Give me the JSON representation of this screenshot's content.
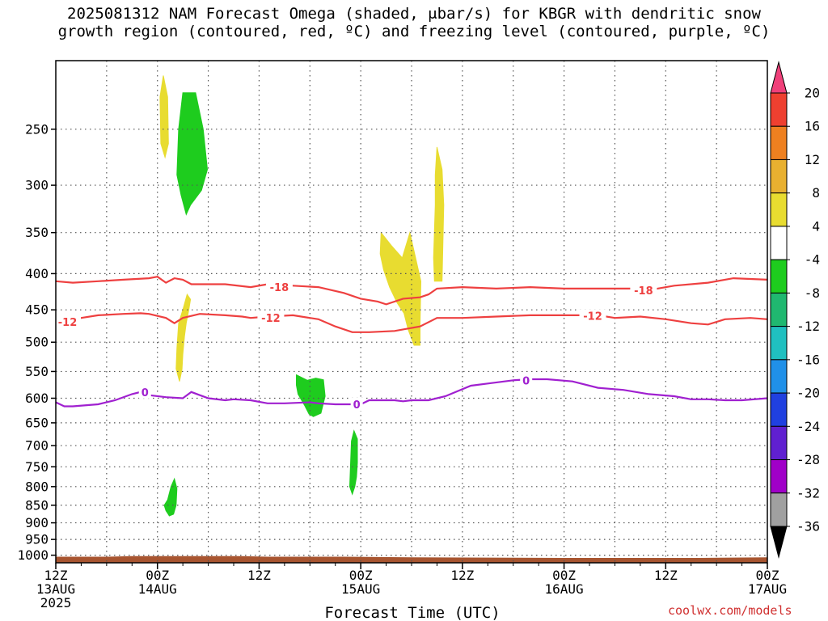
{
  "chart_data": {
    "type": "heatmap",
    "title_line1": "2025081312 NAM Forecast Omega (shaded, μbar/s) for KBGR with dendritic snow",
    "title_line2": "growth region (contoured, red, ºC) and freezing level (contoured, purple, ºC)",
    "xlabel": "Forecast Time (UTC)",
    "credit": "coolwx.com/models",
    "xlim": [
      0,
      84
    ],
    "ylim": [
      1025,
      200
    ],
    "y_scale": "log-pressure",
    "grid": true,
    "x_ticks": [
      {
        "x": 0,
        "l1": "12Z",
        "l2": "13AUG",
        "l3": "2025"
      },
      {
        "x": 12,
        "l1": "00Z",
        "l2": "14AUG",
        "l3": ""
      },
      {
        "x": 24,
        "l1": "12Z",
        "l2": "",
        "l3": ""
      },
      {
        "x": 36,
        "l1": "00Z",
        "l2": "15AUG",
        "l3": ""
      },
      {
        "x": 48,
        "l1": "12Z",
        "l2": "",
        "l3": ""
      },
      {
        "x": 60,
        "l1": "00Z",
        "l2": "16AUG",
        "l3": ""
      },
      {
        "x": 72,
        "l1": "12Z",
        "l2": "",
        "l3": ""
      },
      {
        "x": 84,
        "l1": "00Z",
        "l2": "17AUG",
        "l3": ""
      }
    ],
    "y_ticks": [
      250,
      300,
      350,
      400,
      450,
      500,
      550,
      600,
      650,
      700,
      750,
      800,
      850,
      900,
      950,
      1000
    ],
    "colorbar": {
      "labels": [
        "20",
        "16",
        "12",
        "8",
        "4",
        "-4",
        "-8",
        "-12",
        "-16",
        "-20",
        "-24",
        "-28",
        "-32",
        "-36"
      ],
      "colors": [
        "#f0407a",
        "#ee4030",
        "#ee8020",
        "#e8b030",
        "#e8dc30",
        "#ffffff",
        "#1ecc1e",
        "#20b870",
        "#20c0c0",
        "#2090e8",
        "#2040e0",
        "#6020d0",
        "#a000c8",
        "#a0a0a0",
        "#000000"
      ]
    },
    "contours": [
      {
        "level": "-18",
        "color": "#ee4040",
        "points": [
          [
            0,
            410
          ],
          [
            2,
            412
          ],
          [
            5,
            410
          ],
          [
            8,
            408
          ],
          [
            11,
            406
          ],
          [
            12,
            404
          ],
          [
            13,
            412
          ],
          [
            14,
            406
          ],
          [
            15,
            408
          ],
          [
            16,
            414
          ],
          [
            20,
            414
          ],
          [
            23,
            418
          ],
          [
            25,
            414
          ],
          [
            28,
            416
          ],
          [
            31,
            418
          ],
          [
            34,
            426
          ],
          [
            36,
            434
          ],
          [
            38,
            438
          ],
          [
            39,
            442
          ],
          [
            41,
            434
          ],
          [
            43,
            432
          ],
          [
            44,
            428
          ],
          [
            45,
            420
          ],
          [
            48,
            418
          ],
          [
            52,
            420
          ],
          [
            56,
            418
          ],
          [
            60,
            420
          ],
          [
            64,
            420
          ],
          [
            68,
            420
          ],
          [
            70,
            422
          ],
          [
            73,
            416
          ],
          [
            77,
            412
          ],
          [
            80,
            406
          ],
          [
            84,
            408
          ]
        ],
        "labels": [
          [
            25,
            418
          ],
          [
            68,
            422
          ]
        ]
      },
      {
        "level": "-12",
        "color": "#ee4040",
        "points": [
          [
            0,
            465
          ],
          [
            3,
            462
          ],
          [
            5,
            458
          ],
          [
            8,
            456
          ],
          [
            10,
            455
          ],
          [
            11,
            456
          ],
          [
            13,
            462
          ],
          [
            14,
            470
          ],
          [
            15,
            462
          ],
          [
            17,
            456
          ],
          [
            20,
            458
          ],
          [
            22,
            460
          ],
          [
            23,
            462
          ],
          [
            25,
            460
          ],
          [
            28,
            458
          ],
          [
            31,
            464
          ],
          [
            33,
            475
          ],
          [
            35,
            484
          ],
          [
            37,
            484
          ],
          [
            40,
            482
          ],
          [
            43,
            475
          ],
          [
            45,
            462
          ],
          [
            48,
            462
          ],
          [
            52,
            460
          ],
          [
            56,
            458
          ],
          [
            60,
            458
          ],
          [
            64,
            458
          ],
          [
            66,
            462
          ],
          [
            69,
            460
          ],
          [
            72,
            464
          ],
          [
            75,
            470
          ],
          [
            77,
            472
          ],
          [
            79,
            464
          ],
          [
            82,
            462
          ],
          [
            84,
            464
          ]
        ],
        "labels": [
          [
            0,
            468
          ],
          [
            24,
            462
          ],
          [
            62,
            459
          ]
        ]
      },
      {
        "level": "0",
        "color": "#a020d0",
        "points": [
          [
            0,
            608
          ],
          [
            1,
            616
          ],
          [
            2,
            616
          ],
          [
            5,
            612
          ],
          [
            7,
            604
          ],
          [
            9,
            592
          ],
          [
            10,
            588
          ],
          [
            11,
            594
          ],
          [
            13,
            598
          ],
          [
            15,
            600
          ],
          [
            16,
            588
          ],
          [
            17,
            594
          ],
          [
            18,
            600
          ],
          [
            20,
            604
          ],
          [
            21,
            602
          ],
          [
            23,
            604
          ],
          [
            25,
            610
          ],
          [
            27,
            610
          ],
          [
            30,
            608
          ],
          [
            31,
            610
          ],
          [
            33,
            612
          ],
          [
            35,
            612
          ],
          [
            36,
            612
          ],
          [
            37,
            604
          ],
          [
            40,
            604
          ],
          [
            41,
            606
          ],
          [
            42,
            604
          ],
          [
            44,
            604
          ],
          [
            46,
            596
          ],
          [
            49,
            576
          ],
          [
            51,
            572
          ],
          [
            54,
            566
          ],
          [
            56,
            564
          ],
          [
            58,
            564
          ],
          [
            61,
            568
          ],
          [
            64,
            580
          ],
          [
            67,
            584
          ],
          [
            70,
            592
          ],
          [
            73,
            596
          ],
          [
            75,
            602
          ],
          [
            77,
            602
          ],
          [
            79,
            604
          ],
          [
            81,
            604
          ],
          [
            84,
            600
          ]
        ],
        "labels": [
          [
            10,
            588
          ],
          [
            35,
            612
          ],
          [
            55,
            566
          ]
        ]
      }
    ],
    "blobs": [
      {
        "color": "#e8dc30",
        "points": [
          [
            12.7,
            210
          ],
          [
            13.2,
            225
          ],
          [
            13.3,
            262
          ],
          [
            12.9,
            274
          ],
          [
            12.4,
            262
          ],
          [
            12.3,
            225
          ]
        ]
      },
      {
        "color": "#1ecc1e",
        "points": [
          [
            15.0,
            222
          ],
          [
            16.5,
            222
          ],
          [
            17.4,
            250
          ],
          [
            17.9,
            285
          ],
          [
            17.2,
            305
          ],
          [
            15.9,
            320
          ],
          [
            15.4,
            330
          ],
          [
            14.8,
            310
          ],
          [
            14.3,
            290
          ],
          [
            14.5,
            250
          ]
        ]
      },
      {
        "color": "#e8dc30",
        "points": [
          [
            15.9,
            435
          ],
          [
            15.7,
            450
          ],
          [
            15.4,
            470
          ],
          [
            15.2,
            490
          ],
          [
            15.0,
            520
          ],
          [
            14.9,
            546
          ],
          [
            14.6,
            568
          ],
          [
            14.2,
            545
          ],
          [
            14.3,
            510
          ],
          [
            14.5,
            470
          ],
          [
            15.0,
            450
          ],
          [
            15.5,
            428
          ]
        ]
      },
      {
        "color": "#e8dc30",
        "points": [
          [
            38.4,
            350
          ],
          [
            39.6,
            365
          ],
          [
            40.9,
            380
          ],
          [
            41.8,
            350
          ],
          [
            43.1,
            410
          ],
          [
            43.0,
            470
          ],
          [
            43.0,
            505
          ],
          [
            42.3,
            505
          ],
          [
            41.6,
            480
          ],
          [
            41.1,
            455
          ],
          [
            40.3,
            440
          ],
          [
            39.4,
            418
          ],
          [
            38.7,
            395
          ],
          [
            38.3,
            375
          ]
        ]
      },
      {
        "color": "#e8dc30",
        "points": [
          [
            45.0,
            265
          ],
          [
            45.6,
            285
          ],
          [
            45.8,
            320
          ],
          [
            45.6,
            410
          ],
          [
            44.7,
            410
          ],
          [
            44.6,
            380
          ],
          [
            44.8,
            320
          ],
          [
            44.8,
            290
          ]
        ]
      },
      {
        "color": "#1ecc1e",
        "points": [
          [
            28.4,
            556
          ],
          [
            29.7,
            566
          ],
          [
            30.7,
            562
          ],
          [
            31.6,
            565
          ],
          [
            31.8,
            596
          ],
          [
            31.3,
            630
          ],
          [
            30.4,
            637
          ],
          [
            29.9,
            632
          ],
          [
            29.4,
            615
          ],
          [
            28.6,
            592
          ],
          [
            28.4,
            575
          ]
        ]
      },
      {
        "color": "#1ecc1e",
        "points": [
          [
            35.2,
            667
          ],
          [
            35.6,
            685
          ],
          [
            35.6,
            740
          ],
          [
            35.5,
            775
          ],
          [
            35.3,
            800
          ],
          [
            35.0,
            820
          ],
          [
            34.7,
            800
          ],
          [
            34.8,
            740
          ],
          [
            34.9,
            690
          ]
        ]
      },
      {
        "color": "#1ecc1e",
        "points": [
          [
            14.0,
            780
          ],
          [
            14.3,
            805
          ],
          [
            14.2,
            850
          ],
          [
            13.9,
            875
          ],
          [
            13.4,
            880
          ],
          [
            13.0,
            865
          ],
          [
            12.8,
            850
          ],
          [
            13.2,
            835
          ],
          [
            13.6,
            800
          ]
        ]
      }
    ],
    "terrain": {
      "color": "#a85530",
      "top": [
        [
          0,
          1005
        ],
        [
          6,
          1005
        ],
        [
          9,
          1003
        ],
        [
          16,
          1003
        ],
        [
          22,
          1003
        ],
        [
          25,
          1005
        ],
        [
          34,
          1005
        ],
        [
          42,
          1007
        ],
        [
          60,
          1009
        ],
        [
          76,
          1009
        ],
        [
          84,
          1007
        ]
      ]
    }
  }
}
